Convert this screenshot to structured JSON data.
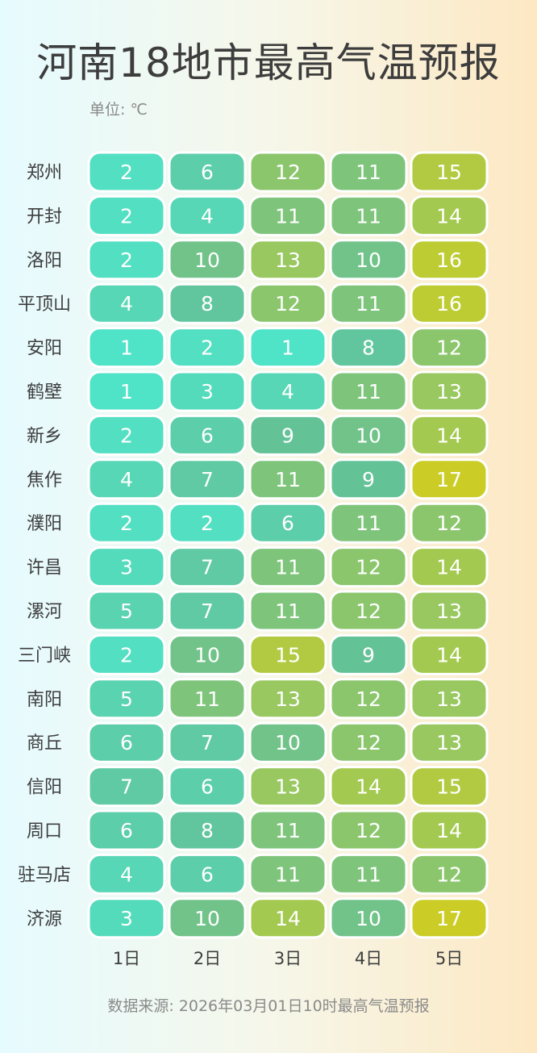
{
  "title": "河南18地市最高气温预报",
  "unit_label": "单位: ℃",
  "source": "数据来源: 2026年03月01日10时最高气温预报",
  "colors": {
    "low": "#4fe3c8",
    "mid": "#64c297",
    "high": "#cbcd26",
    "text": "#ffffff",
    "label": "#3d3d3d"
  },
  "chart_data": {
    "type": "heatmap",
    "title": "河南18地市最高气温预报",
    "unit": "℃",
    "x": [
      "1日",
      "2日",
      "3日",
      "4日",
      "5日"
    ],
    "y": [
      "郑州",
      "开封",
      "洛阳",
      "平顶山",
      "安阳",
      "鹤壁",
      "新乡",
      "焦作",
      "濮阳",
      "许昌",
      "漯河",
      "三门峡",
      "南阳",
      "商丘",
      "信阳",
      "周口",
      "驻马店",
      "济源"
    ],
    "values": [
      [
        2,
        6,
        12,
        11,
        15
      ],
      [
        2,
        4,
        11,
        11,
        14
      ],
      [
        2,
        10,
        13,
        10,
        16
      ],
      [
        4,
        8,
        12,
        11,
        16
      ],
      [
        1,
        2,
        1,
        8,
        12
      ],
      [
        1,
        3,
        4,
        11,
        13
      ],
      [
        2,
        6,
        9,
        10,
        14
      ],
      [
        4,
        7,
        11,
        9,
        17
      ],
      [
        2,
        2,
        6,
        11,
        12
      ],
      [
        3,
        7,
        11,
        12,
        14
      ],
      [
        5,
        7,
        11,
        12,
        13
      ],
      [
        2,
        10,
        15,
        9,
        14
      ],
      [
        5,
        11,
        13,
        12,
        13
      ],
      [
        6,
        7,
        10,
        12,
        13
      ],
      [
        7,
        6,
        13,
        14,
        15
      ],
      [
        6,
        8,
        11,
        12,
        14
      ],
      [
        4,
        6,
        11,
        11,
        12
      ],
      [
        3,
        10,
        14,
        10,
        17
      ]
    ],
    "value_range": [
      1,
      17
    ]
  }
}
